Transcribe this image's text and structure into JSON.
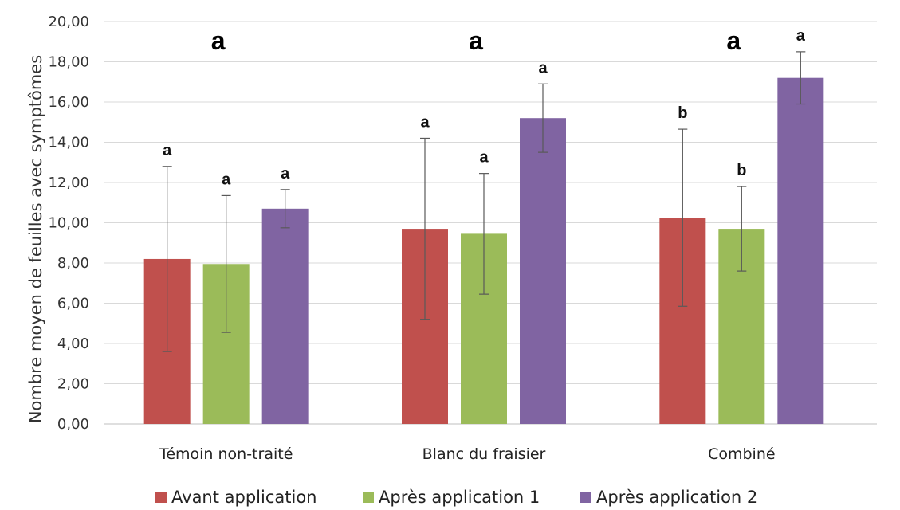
{
  "chart_data": {
    "type": "bar",
    "categories": [
      "Témoin non-traité",
      "Blanc du fraisier",
      "Combiné"
    ],
    "ylabel": "Nombre moyen de feuilles avec symptômes",
    "xlabel": "",
    "title": "",
    "ylim": [
      0,
      20
    ],
    "yticks": [
      "0,00",
      "2,00",
      "4,00",
      "6,00",
      "8,00",
      "10,00",
      "12,00",
      "14,00",
      "16,00",
      "18,00",
      "20,00"
    ],
    "grid": true,
    "legend_position": "bottom",
    "group_labels": [
      "a",
      "a",
      "a"
    ],
    "series": [
      {
        "name": "Avant application",
        "color": "#c0504d",
        "values": [
          8.2,
          9.7,
          10.25
        ],
        "error": [
          4.6,
          4.5,
          4.4
        ],
        "labels": [
          "a",
          "a",
          "b"
        ]
      },
      {
        "name": "Après application 1",
        "color": "#9bbb59",
        "values": [
          7.95,
          9.45,
          9.7
        ],
        "error": [
          3.4,
          3.0,
          2.1
        ],
        "labels": [
          "a",
          "a",
          "b"
        ]
      },
      {
        "name": "Après application 2",
        "color": "#8064a2",
        "values": [
          10.7,
          15.2,
          17.2
        ],
        "error": [
          0.95,
          1.7,
          1.3
        ],
        "labels": [
          "a",
          "a",
          "a"
        ]
      }
    ]
  }
}
